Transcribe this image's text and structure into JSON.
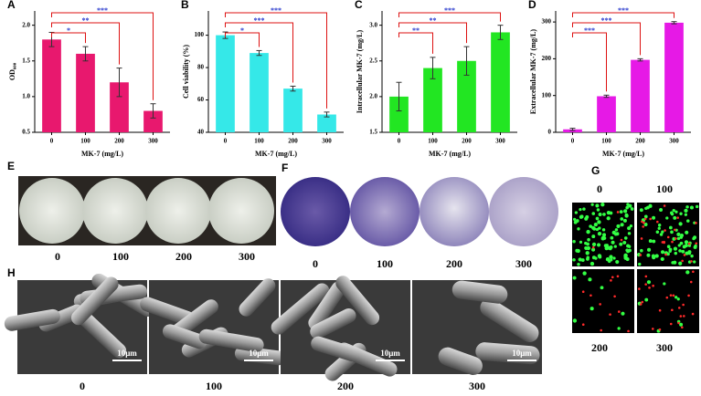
{
  "chart_data": [
    {
      "type": "bar",
      "panel": "A",
      "ylabel": "OD₆₀₀",
      "xlabel": "MK-7 (mg/L)",
      "categories": [
        "0",
        "100",
        "200",
        "300"
      ],
      "values": [
        1.8,
        1.6,
        1.2,
        0.8
      ],
      "errors": [
        0.1,
        0.1,
        0.2,
        0.1
      ],
      "color": "#e8186e",
      "ylim": [
        0.5,
        2.2
      ],
      "yticks": [
        0.5,
        {
          "value": 1,
          "label": "1.0"
        },
        1.5,
        {
          "value": 2,
          "label": "2.0"
        }
      ],
      "significance": [
        "*",
        "**",
        "***"
      ]
    },
    {
      "type": "bar",
      "panel": "B",
      "ylabel": "Cell viability (%)",
      "xlabel": "MK-7 (mg/L)",
      "categories": [
        "0",
        "100",
        "200",
        "300"
      ],
      "values": [
        100,
        89,
        67,
        51
      ],
      "errors": [
        2,
        1.5,
        1.5,
        1.5
      ],
      "color": "#35e8e8",
      "ylim": [
        40,
        115
      ],
      "yticks": [
        40,
        60,
        80,
        100
      ],
      "significance": [
        "*",
        "***",
        "***"
      ]
    },
    {
      "type": "bar",
      "panel": "C",
      "ylabel": "Intracellular MK-7 (mg/L)",
      "xlabel": "MK-7 (mg/L)",
      "categories": [
        "0",
        "100",
        "200",
        "300"
      ],
      "values": [
        2.0,
        2.4,
        2.5,
        2.9
      ],
      "errors": [
        0.2,
        0.15,
        0.2,
        0.1
      ],
      "color": "#22e622",
      "ylim": [
        1.5,
        3.2
      ],
      "yticks": [
        1.5,
        {
          "value": 2,
          "label": "2.0"
        },
        2.5,
        {
          "value": 3,
          "label": "3.0"
        }
      ],
      "significance": [
        "**",
        "**",
        "***"
      ]
    },
    {
      "type": "bar",
      "panel": "D",
      "ylabel": "Extracellular MK-7 (mg/L)",
      "xlabel": "MK-7 (mg/L)",
      "categories": [
        "0",
        "100",
        "200",
        "300"
      ],
      "values": [
        8,
        98,
        197,
        298
      ],
      "errors": [
        3,
        3,
        3,
        3
      ],
      "color": "#e619e6",
      "ylim": [
        0,
        330
      ],
      "yticks": [
        0,
        100,
        200,
        300
      ],
      "significance": [
        "***",
        "***",
        "***"
      ]
    }
  ],
  "panels": {
    "E": {
      "label": "E",
      "captions": [
        "0",
        "100",
        "200",
        "300"
      ]
    },
    "F": {
      "label": "F",
      "captions": [
        "0",
        "100",
        "200",
        "300"
      ]
    },
    "G": {
      "label": "G",
      "captions": [
        "0",
        "100",
        "200",
        "300"
      ]
    },
    "H": {
      "label": "H",
      "captions": [
        "0",
        "100",
        "200",
        "300"
      ],
      "scale_bar": "10μm"
    }
  }
}
